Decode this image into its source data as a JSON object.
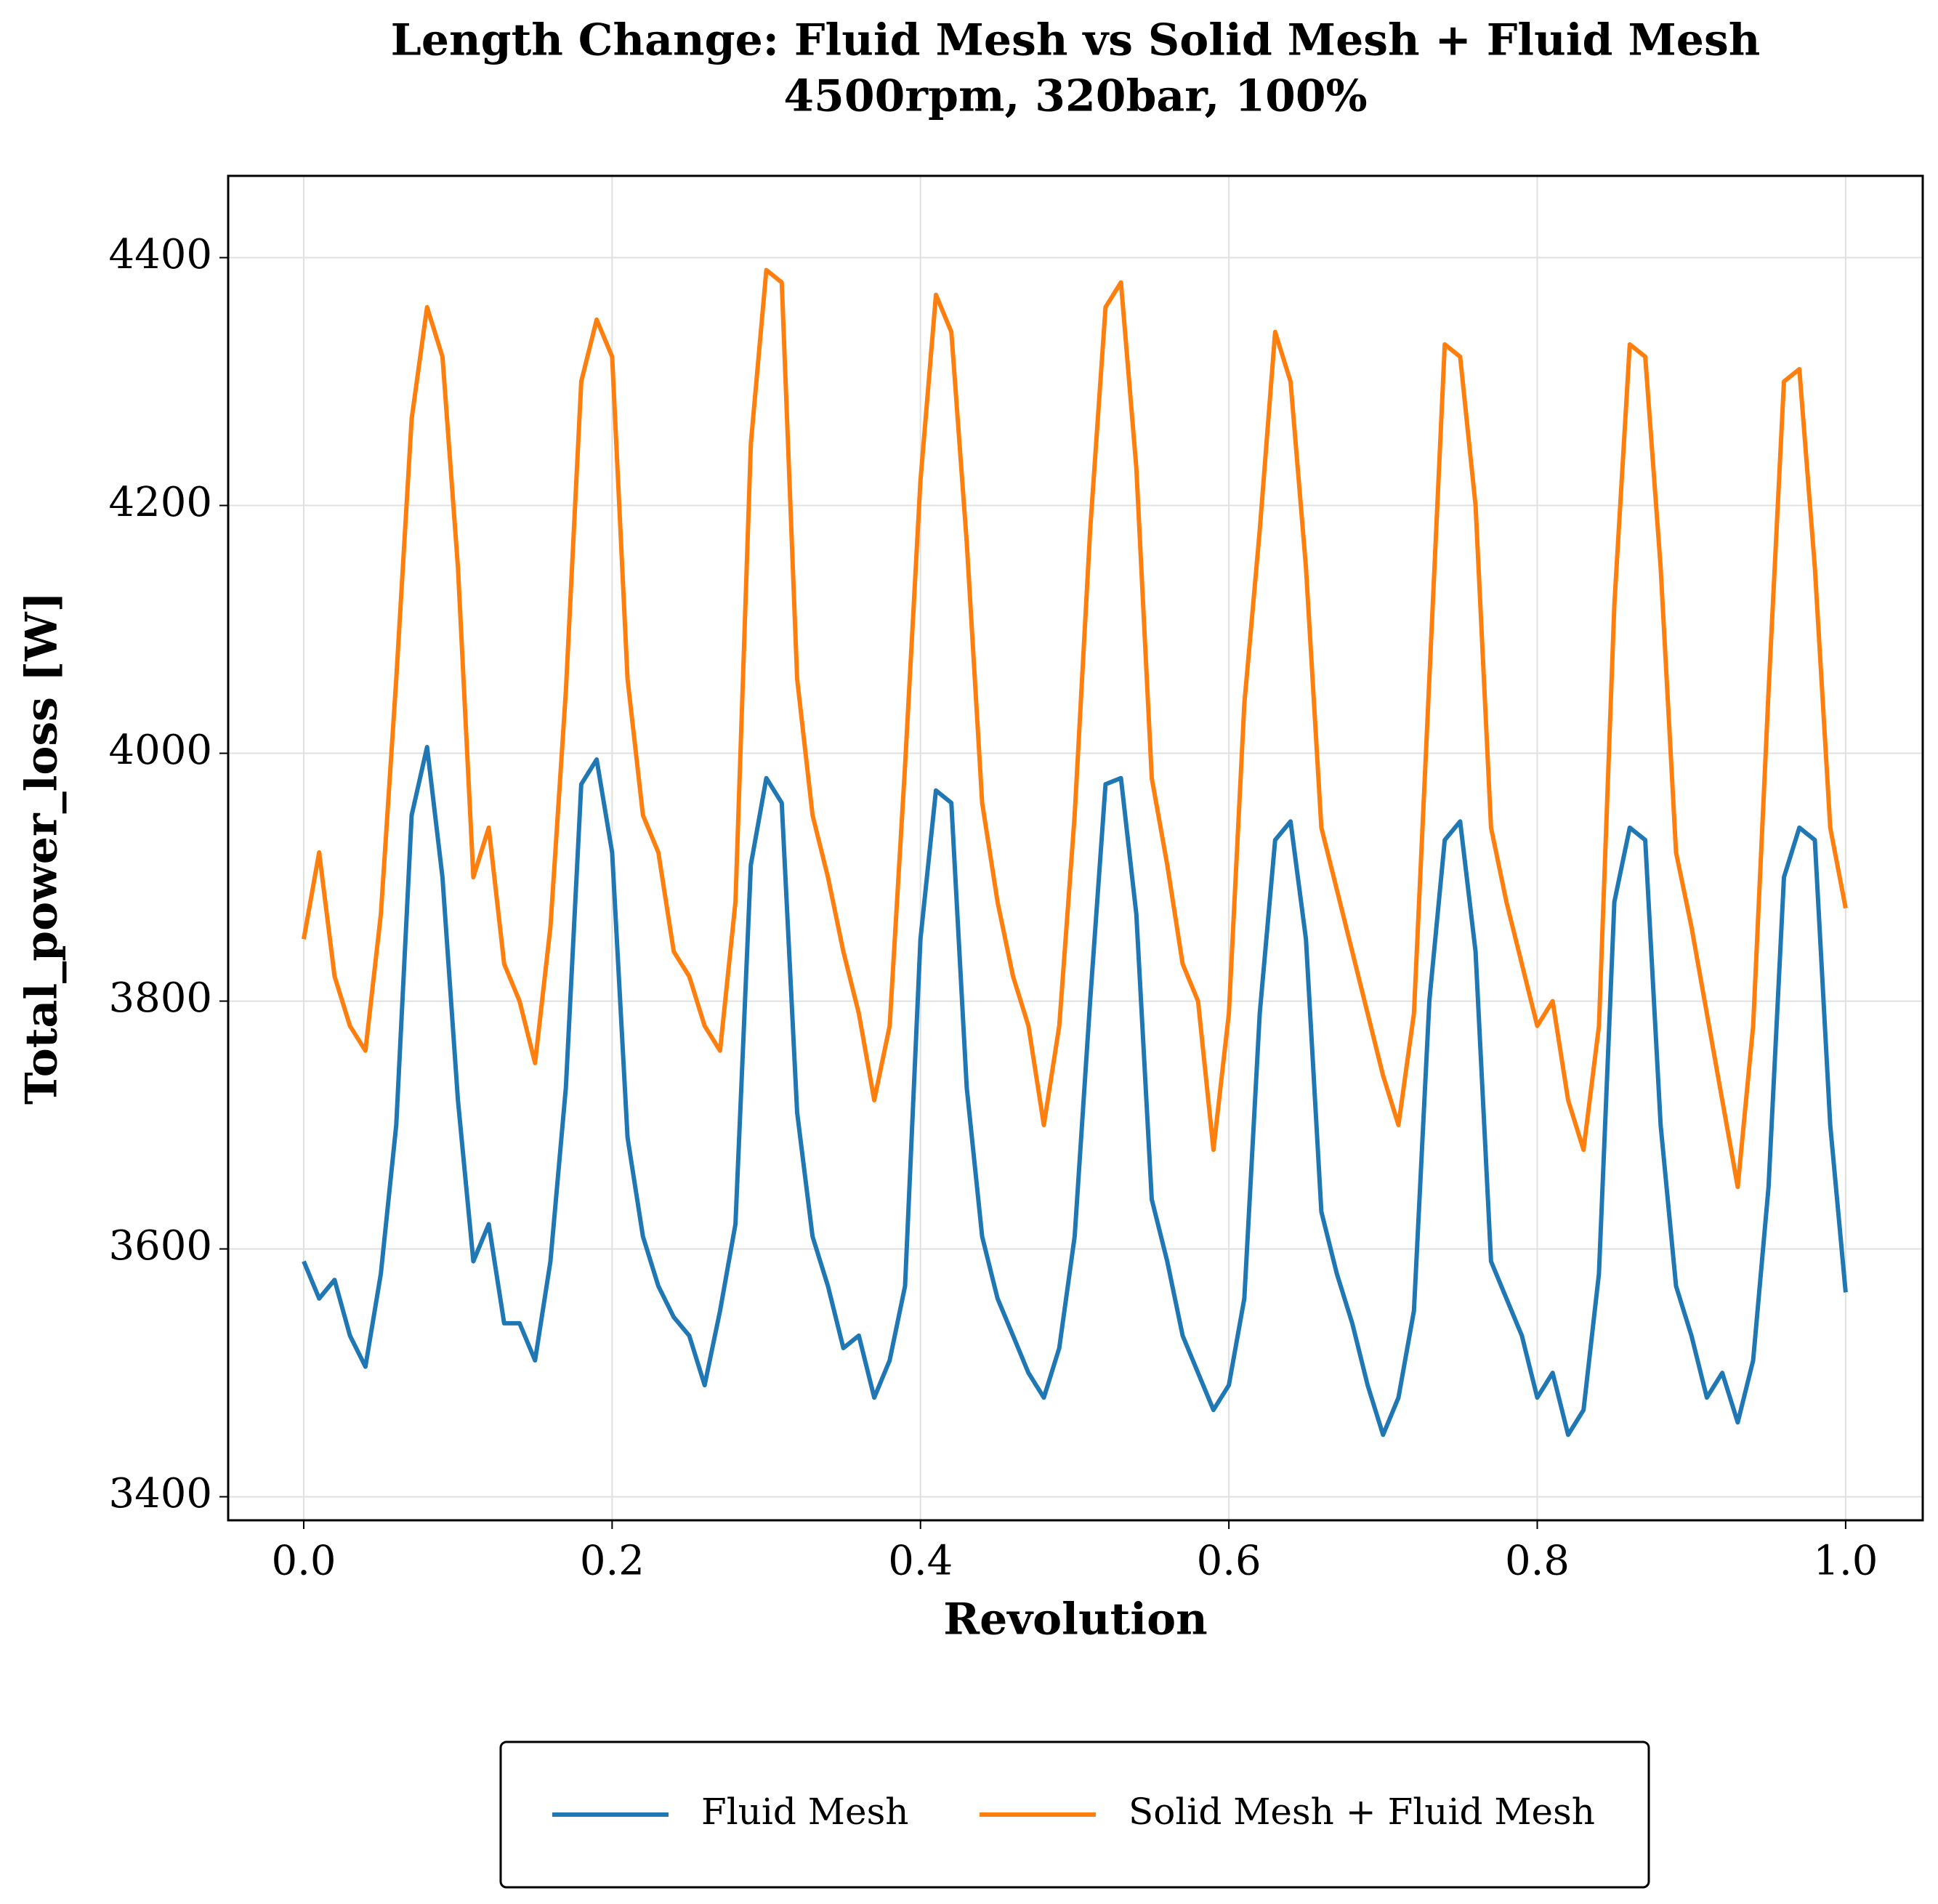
{
  "chart_data": {
    "type": "line",
    "title": "Length Change: Fluid Mesh vs Solid Mesh + Fluid Mesh",
    "subtitle": "4500rpm, 320bar, 100%",
    "x_label": "Revolution",
    "y_label": "Total_power_loss [W]",
    "x": [
      0,
      0.01,
      0.02,
      0.03,
      0.04,
      0.05,
      0.06,
      0.07,
      0.08,
      0.09,
      0.1,
      0.11,
      0.12,
      0.13,
      0.14,
      0.15,
      0.16,
      0.17,
      0.18,
      0.19,
      0.2,
      0.21,
      0.22,
      0.23,
      0.24,
      0.25,
      0.26,
      0.27,
      0.28,
      0.29,
      0.3,
      0.31,
      0.32,
      0.33,
      0.34,
      0.35,
      0.36,
      0.37,
      0.38,
      0.39,
      0.4,
      0.41,
      0.42,
      0.43,
      0.44,
      0.45,
      0.46,
      0.47,
      0.48,
      0.49,
      0.5,
      0.51,
      0.52,
      0.53,
      0.54,
      0.55,
      0.56,
      0.57,
      0.58,
      0.59,
      0.6,
      0.61,
      0.62,
      0.63,
      0.64,
      0.65,
      0.66,
      0.67,
      0.68,
      0.69,
      0.7,
      0.71,
      0.72,
      0.73,
      0.74,
      0.75,
      0.76,
      0.77,
      0.78,
      0.79,
      0.8,
      0.81,
      0.82,
      0.83,
      0.84,
      0.85,
      0.86,
      0.87,
      0.88,
      0.89,
      0.9,
      0.91,
      0.92,
      0.93,
      0.94,
      0.95,
      0.96,
      0.97,
      0.98,
      0.99,
      1
    ],
    "series": [
      {
        "name": "Fluid Mesh",
        "color": "#1f77b4",
        "values": [
          3590,
          3560,
          3575,
          3530,
          3505,
          3580,
          3700,
          3950,
          4005,
          3900,
          3720,
          3590,
          3620,
          3540,
          3540,
          3510,
          3590,
          3730,
          3975,
          3995,
          3920,
          3690,
          3610,
          3570,
          3545,
          3530,
          3490,
          3550,
          3620,
          3910,
          3980,
          3960,
          3710,
          3610,
          3570,
          3520,
          3530,
          3480,
          3510,
          3570,
          3850,
          3970,
          3960,
          3730,
          3610,
          3560,
          3530,
          3500,
          3480,
          3520,
          3610,
          3800,
          3975,
          3980,
          3870,
          3640,
          3590,
          3530,
          3500,
          3470,
          3490,
          3560,
          3790,
          3930,
          3945,
          3850,
          3630,
          3580,
          3540,
          3490,
          3450,
          3480,
          3550,
          3800,
          3930,
          3945,
          3840,
          3590,
          3560,
          3530,
          3480,
          3500,
          3450,
          3470,
          3580,
          3880,
          3940,
          3930,
          3700,
          3570,
          3530,
          3480,
          3500,
          3460,
          3510,
          3650,
          3900,
          3940,
          3930,
          3700,
          3565
        ]
      },
      {
        "name": "Solid Mesh + Fluid Mesh",
        "color": "#ff7f0e",
        "values": [
          3850,
          3920,
          3820,
          3780,
          3760,
          3870,
          4060,
          4270,
          4360,
          4320,
          4150,
          3900,
          3940,
          3830,
          3800,
          3750,
          3860,
          4050,
          4300,
          4350,
          4320,
          4060,
          3950,
          3920,
          3840,
          3820,
          3780,
          3760,
          3880,
          4250,
          4390,
          4380,
          4060,
          3950,
          3900,
          3840,
          3790,
          3720,
          3780,
          3990,
          4220,
          4370,
          4340,
          4170,
          3960,
          3880,
          3820,
          3780,
          3700,
          3780,
          3950,
          4180,
          4360,
          4380,
          4230,
          3980,
          3910,
          3830,
          3800,
          3680,
          3790,
          4040,
          4180,
          4340,
          4300,
          4150,
          3940,
          3890,
          3840,
          3790,
          3740,
          3700,
          3790,
          4060,
          4330,
          4320,
          4200,
          3940,
          3880,
          3830,
          3780,
          3800,
          3720,
          3680,
          3780,
          4120,
          4330,
          4320,
          4150,
          3920,
          3860,
          3790,
          3720,
          3650,
          3780,
          4050,
          4300,
          4310,
          4150,
          3940,
          3875
        ]
      }
    ],
    "xlim": [
      -0.049,
      1.05
    ],
    "ylim": [
      3381,
      4466
    ],
    "xticks": [
      {
        "value": 0,
        "label": "0.0"
      },
      0.2,
      0.4,
      0.6,
      0.8,
      {
        "value": 1,
        "label": "1.0"
      }
    ],
    "yticks": [
      3400,
      3600,
      3800,
      4000,
      4200,
      4400
    ],
    "grid": true,
    "legend": "bottom"
  }
}
